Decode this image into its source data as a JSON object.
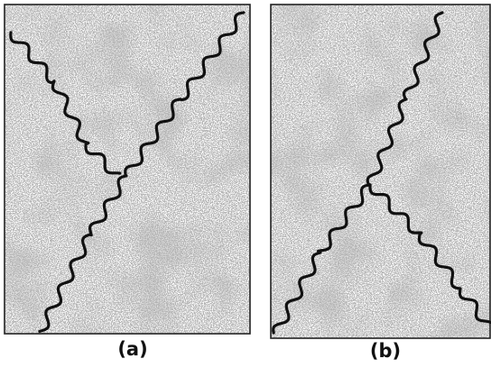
{
  "panels": [
    {
      "label": "(a)"
    },
    {
      "label": "(b)"
    }
  ]
}
